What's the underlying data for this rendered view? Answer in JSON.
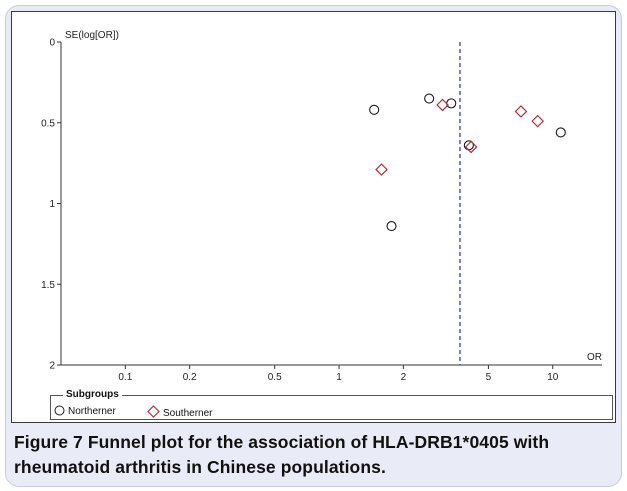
{
  "figure": {
    "caption_label": "Figure 7",
    "caption_text": "Funnel plot for the association of HLA-DRB1*0405 with rheumatoid arthritis in Chinese populations.",
    "panel_color": "#e9ecf6"
  },
  "chart_data": {
    "type": "scatter",
    "title": "",
    "xlabel": "OR",
    "ylabel": "SE(log[OR])",
    "x_scale": "log",
    "y_inverted": true,
    "xlim": [
      0.05,
      17
    ],
    "ylim": [
      0,
      2
    ],
    "x_ticks": [
      0.1,
      0.2,
      0.5,
      1,
      2,
      5,
      10
    ],
    "x_tick_labels": [
      "0.1",
      "0.2",
      "0.5",
      "1",
      "2",
      "5",
      "10"
    ],
    "y_ticks": [
      0,
      0.5,
      1,
      1.5,
      2
    ],
    "y_tick_labels": [
      "0",
      "0.5",
      "1",
      "1.5",
      "2"
    ],
    "reference_line": {
      "x": 3.68,
      "style": "dashed",
      "color": "#2c2c9c"
    },
    "grid": false,
    "legend": {
      "title": "Subgroups",
      "placement": "bottom",
      "entries": [
        "Northerner",
        "Southerner"
      ]
    },
    "series": [
      {
        "name": "Northerner",
        "marker": "circle",
        "color": "#1a1a1a",
        "points": [
          {
            "x": 1.46,
            "y": 0.42
          },
          {
            "x": 2.64,
            "y": 0.35
          },
          {
            "x": 3.35,
            "y": 0.38
          },
          {
            "x": 4.05,
            "y": 0.64
          },
          {
            "x": 10.9,
            "y": 0.56
          },
          {
            "x": 1.76,
            "y": 1.14
          }
        ]
      },
      {
        "name": "Southerner",
        "marker": "diamond",
        "color": "#b23040",
        "points": [
          {
            "x": 1.58,
            "y": 0.79
          },
          {
            "x": 3.05,
            "y": 0.39
          },
          {
            "x": 4.15,
            "y": 0.65
          },
          {
            "x": 7.1,
            "y": 0.43
          },
          {
            "x": 8.5,
            "y": 0.49
          }
        ]
      }
    ]
  }
}
